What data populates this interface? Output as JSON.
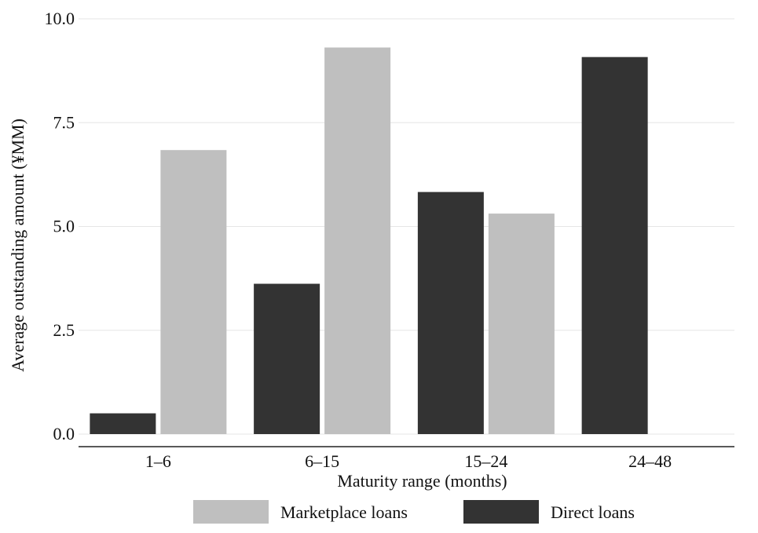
{
  "chart_data": {
    "type": "bar",
    "xlabel": "Maturity range (months)",
    "ylabel": "Average outstanding amount (¥MM)",
    "categories": [
      "1–6",
      "6–15",
      "15–24",
      "24–48"
    ],
    "series": [
      {
        "name": "Direct loans",
        "values": [
          0.5,
          3.62,
          5.83,
          9.08
        ],
        "color": "#333333"
      },
      {
        "name": "Marketplace loans",
        "values": [
          6.84,
          9.31,
          5.31,
          null
        ],
        "color": "#bfbfbf"
      }
    ],
    "yticks": [
      "0.0",
      "2.5",
      "5.0",
      "7.5",
      "10.0"
    ],
    "ylim": [
      0,
      10
    ],
    "grid": true,
    "legend_position": "bottom",
    "legend_order": [
      "Marketplace loans",
      "Direct loans"
    ]
  }
}
